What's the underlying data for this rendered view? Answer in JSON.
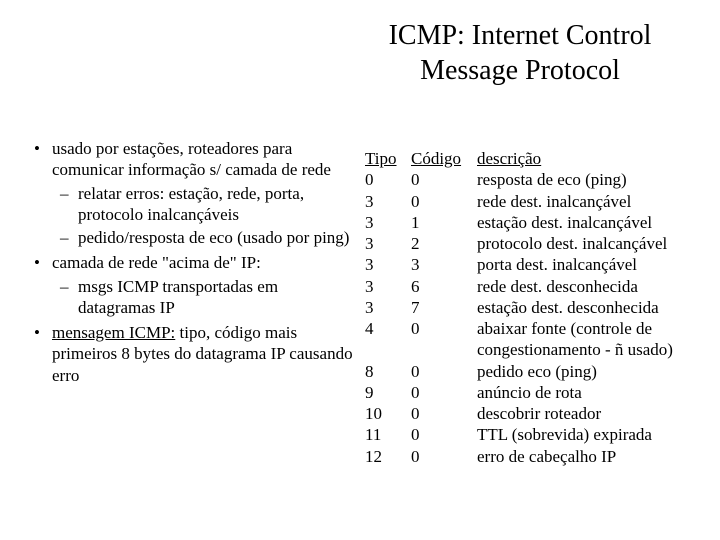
{
  "title_line1": "ICMP: Internet Control",
  "title_line2": "Message Protocol",
  "bullets": {
    "b0": "usado por estações, roteadores para comunicar informação s/ camada de rede",
    "b0_s0": "relatar erros: estação, rede, porta, protocolo inalcançáveis",
    "b0_s1": "pedido/resposta de eco (usado por ping)",
    "b1": "camada de rede \"acima de\" IP:",
    "b1_s0": "msgs ICMP transportadas em datagramas IP",
    "b2_pre": "mensagem ICMP:",
    "b2_post": " tipo, código mais primeiros 8 bytes do datagrama IP causando erro"
  },
  "headers": {
    "tipo": "Tipo",
    "codigo": "Código",
    "desc": "descrição"
  },
  "rows": {
    "r0": {
      "t": "0",
      "c": "0",
      "d": "resposta de eco (ping)"
    },
    "r1": {
      "t": "3",
      "c": "0",
      "d": "rede dest. inalcançável"
    },
    "r2": {
      "t": "3",
      "c": "1",
      "d": "estação dest. inalcançável"
    },
    "r3": {
      "t": "3",
      "c": "2",
      "d": "protocolo dest. inalcançável"
    },
    "r4": {
      "t": "3",
      "c": "3",
      "d": "porta dest. inalcançável"
    },
    "r5": {
      "t": "3",
      "c": "6",
      "d": "rede dest. desconhecida"
    },
    "r6": {
      "t": "3",
      "c": "7",
      "d": "estação dest. desconhecida"
    },
    "r7": {
      "t": "4",
      "c": "0",
      "d": "abaixar fonte (controle de congestionamento - ñ usado)"
    },
    "r8": {
      "t": "8",
      "c": "0",
      "d": "pedido eco (ping)"
    },
    "r9": {
      "t": "9",
      "c": "0",
      "d": "anúncio de rota"
    },
    "r10": {
      "t": "10",
      "c": "0",
      "d": "descobrir roteador"
    },
    "r11": {
      "t": "11",
      "c": "0",
      "d": "TTL (sobrevida) expirada"
    },
    "r12": {
      "t": "12",
      "c": "0",
      "d": "erro de cabeçalho IP"
    }
  },
  "style": {
    "background_color": "#ffffff",
    "text_color": "#000000",
    "title_fontsize_pt": 21,
    "body_fontsize_pt": 13,
    "font_family": "Times New Roman"
  }
}
